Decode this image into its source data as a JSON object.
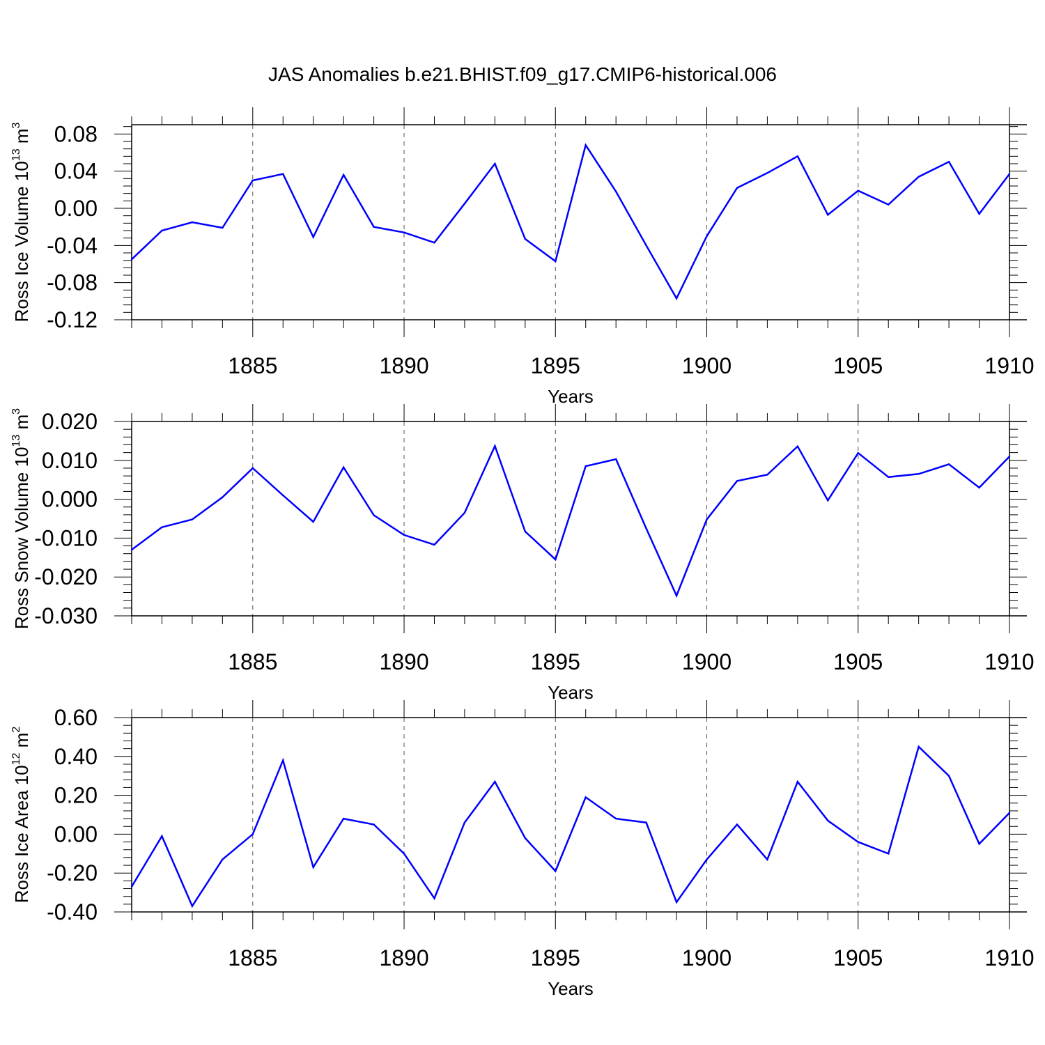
{
  "figure": {
    "title": "JAS Anomalies b.e21.BHIST.f09_g17.CMIP6-historical.006",
    "line_color": "#0000ff",
    "grid_color": "#555555"
  },
  "chart_data": [
    {
      "type": "line",
      "xlabel": "Years",
      "ylabel": "Ross Ice Volume 10",
      "ylabel_exp": "13",
      "ylabel_unit": " m",
      "ylabel_unit_exp": "3",
      "xlim": [
        1881,
        1910
      ],
      "ylim": [
        -0.12,
        0.09
      ],
      "x_ticks": [
        1885,
        1890,
        1895,
        1900,
        1905,
        1910
      ],
      "y_ticks": [
        -0.12,
        -0.08,
        -0.04,
        0.0,
        0.04,
        0.08
      ],
      "y_tick_labels": [
        "-0.12",
        "-0.08",
        "-0.04",
        "0.00",
        "0.04",
        "0.08"
      ],
      "grid": "vertical dashed at major x ticks",
      "series": [
        {
          "x": [
            1881,
            1882,
            1883,
            1884,
            1885,
            1886,
            1887,
            1888,
            1889,
            1890,
            1891,
            1892,
            1893,
            1894,
            1895,
            1896,
            1897,
            1898,
            1899,
            1900,
            1901,
            1902,
            1903,
            1904,
            1905,
            1906,
            1907,
            1908,
            1909,
            1910
          ],
          "values": [
            -0.055,
            -0.024,
            -0.015,
            -0.021,
            0.03,
            0.037,
            -0.031,
            0.036,
            -0.02,
            -0.026,
            -0.037,
            0.005,
            0.048,
            -0.033,
            -0.057,
            0.068,
            0.018,
            -0.04,
            -0.097,
            -0.03,
            0.022,
            0.038,
            0.056,
            -0.007,
            0.019,
            0.004,
            0.034,
            0.05,
            -0.006,
            0.037
          ]
        }
      ]
    },
    {
      "type": "line",
      "xlabel": "Years",
      "ylabel": "Ross Snow Volume 10",
      "ylabel_exp": "13",
      "ylabel_unit": " m",
      "ylabel_unit_exp": "3",
      "xlim": [
        1881,
        1910
      ],
      "ylim": [
        -0.03,
        0.02
      ],
      "x_ticks": [
        1885,
        1890,
        1895,
        1900,
        1905,
        1910
      ],
      "y_ticks": [
        -0.03,
        -0.02,
        -0.01,
        0.0,
        0.01,
        0.02
      ],
      "y_tick_labels": [
        "-0.030",
        "-0.020",
        "-0.010",
        "0.000",
        "0.010",
        "0.020"
      ],
      "grid": "vertical dashed at major x ticks",
      "series": [
        {
          "x": [
            1881,
            1882,
            1883,
            1884,
            1885,
            1886,
            1887,
            1888,
            1889,
            1890,
            1891,
            1892,
            1893,
            1894,
            1895,
            1896,
            1897,
            1898,
            1899,
            1900,
            1901,
            1902,
            1903,
            1904,
            1905,
            1906,
            1907,
            1908,
            1909,
            1910
          ],
          "values": [
            -0.013,
            -0.0072,
            -0.0052,
            0.0005,
            0.008,
            0.001,
            -0.0058,
            0.0082,
            -0.0041,
            -0.0092,
            -0.0117,
            -0.0035,
            0.0137,
            -0.0083,
            -0.0155,
            0.0085,
            0.0103,
            -0.0075,
            -0.0248,
            -0.0052,
            0.0047,
            0.0063,
            0.0136,
            -0.0003,
            0.0119,
            0.0057,
            0.0065,
            0.009,
            0.003,
            0.011
          ]
        }
      ]
    },
    {
      "type": "line",
      "xlabel": "Years",
      "ylabel": "Ross Ice Area 10",
      "ylabel_exp": "12",
      "ylabel_unit": " m",
      "ylabel_unit_exp": "2",
      "xlim": [
        1881,
        1910
      ],
      "ylim": [
        -0.4,
        0.6
      ],
      "x_ticks": [
        1885,
        1890,
        1895,
        1900,
        1905,
        1910
      ],
      "y_ticks": [
        -0.4,
        -0.2,
        0.0,
        0.2,
        0.4,
        0.6
      ],
      "y_tick_labels": [
        "-0.40",
        "-0.20",
        "0.00",
        "0.20",
        "0.40",
        "0.60"
      ],
      "grid": "vertical dashed at major x ticks",
      "series": [
        {
          "x": [
            1881,
            1882,
            1883,
            1884,
            1885,
            1886,
            1887,
            1888,
            1889,
            1890,
            1891,
            1892,
            1893,
            1894,
            1895,
            1896,
            1897,
            1898,
            1899,
            1900,
            1901,
            1902,
            1903,
            1904,
            1905,
            1906,
            1907,
            1908,
            1909,
            1910
          ],
          "values": [
            -0.27,
            -0.01,
            -0.37,
            -0.13,
            0.0,
            0.38,
            -0.17,
            0.08,
            0.05,
            -0.1,
            -0.33,
            0.06,
            0.27,
            -0.02,
            -0.19,
            0.19,
            0.08,
            0.06,
            -0.35,
            -0.13,
            0.05,
            -0.13,
            0.27,
            0.07,
            -0.04,
            -0.1,
            0.45,
            0.3,
            -0.05,
            0.11
          ]
        }
      ]
    }
  ]
}
